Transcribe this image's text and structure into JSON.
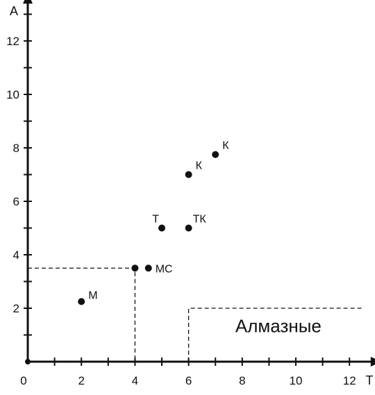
{
  "chart_data": {
    "type": "scatter",
    "title": "",
    "xlabel": "T",
    "ylabel": "A",
    "xlim": [
      0,
      13
    ],
    "ylim": [
      0,
      13.5
    ],
    "xticks": [
      0,
      2,
      4,
      6,
      8,
      10,
      12
    ],
    "yticks": [
      2,
      4,
      6,
      8,
      10,
      12
    ],
    "grid": false,
    "points": [
      {
        "label": "M",
        "x": 2.0,
        "y": 2.25
      },
      {
        "label": "",
        "x": 4.0,
        "y": 3.5
      },
      {
        "label": "МС",
        "x": 4.5,
        "y": 3.5
      },
      {
        "label": "Т",
        "x": 5.0,
        "y": 5.0
      },
      {
        "label": "ТК",
        "x": 6.0,
        "y": 5.0
      },
      {
        "label": "К",
        "x": 6.0,
        "y": 7.0
      },
      {
        "label": "К",
        "x": 7.0,
        "y": 7.75
      }
    ],
    "regions": [
      {
        "label": "",
        "boundary": [
          [
            0,
            3.5
          ],
          [
            4,
            3.5
          ],
          [
            4,
            0
          ]
        ]
      },
      {
        "label": "Алмазные",
        "boundary": [
          [
            6,
            0
          ],
          [
            6,
            2
          ],
          [
            12.5,
            2
          ]
        ]
      }
    ],
    "colors": {
      "ink": "#111111",
      "background": "#ffffff"
    }
  }
}
